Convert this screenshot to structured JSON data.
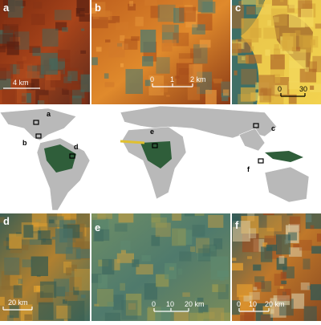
{
  "panels": [
    {
      "label": "a",
      "scale": [
        "4 km"
      ]
    },
    {
      "label": "b",
      "scale": [
        "0",
        "1",
        "2 km"
      ]
    },
    {
      "label": "c",
      "scale": [
        "0",
        "30"
      ]
    },
    {
      "label": "d",
      "scale": [
        "20 km"
      ]
    },
    {
      "label": "e",
      "scale": [
        "0",
        "10",
        "20 km"
      ]
    },
    {
      "label": "f",
      "scale": [
        "0",
        "10",
        "20 km"
      ]
    }
  ],
  "map": {
    "labels": [
      "a",
      "b",
      "c",
      "d",
      "e",
      "f"
    ]
  }
}
